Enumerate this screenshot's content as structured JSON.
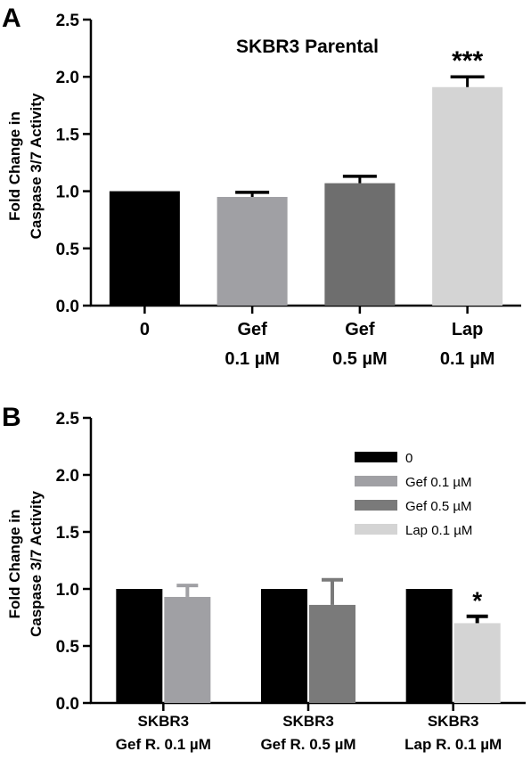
{
  "colors": {
    "zero": "#000000",
    "gef_01": "#a0a0a4",
    "gef_05": "#6e6e6e",
    "lap_01": "#d4d4d4",
    "axis": "#000000"
  },
  "chart_data": [
    {
      "panel_letter": "A",
      "type": "bar",
      "title": "SKBR3 Parental",
      "ylabel_lines": [
        "Fold Change in",
        "Caspase 3/7  Activity"
      ],
      "ylim": [
        0,
        2.5
      ],
      "yticks": [
        "0.0",
        "0.5",
        "1.0",
        "1.5",
        "2.0",
        "2.5"
      ],
      "categories": [
        [
          "0"
        ],
        [
          "Gef",
          "0.1 µM"
        ],
        [
          "Gef",
          "0.5 µM"
        ],
        [
          "Lap",
          "0.1 µM"
        ]
      ],
      "series": [
        {
          "values": [
            1.0,
            0.95,
            1.07,
            1.91
          ],
          "errors": [
            0.0,
            0.04,
            0.06,
            0.09
          ],
          "colors": [
            "#000000",
            "#a0a0a4",
            "#6e6e6e",
            "#d4d4d4"
          ]
        }
      ],
      "annotations": [
        {
          "category_index": 3,
          "text": "***"
        }
      ]
    },
    {
      "panel_letter": "B",
      "type": "bar",
      "title": "",
      "ylabel_lines": [
        "Fold Change in",
        "Caspase 3/7 Activity"
      ],
      "ylim": [
        0,
        2.5
      ],
      "yticks": [
        "0.0",
        "0.5",
        "1.0",
        "1.5",
        "2.0",
        "2.5"
      ],
      "categories": [
        [
          "SKBR3",
          "Gef R. 0.1 µM"
        ],
        [
          "SKBR3",
          "Gef R. 0.5 µM"
        ],
        [
          "SKBR3",
          "Lap R. 0.1 µM"
        ]
      ],
      "legend": {
        "position": "top-right",
        "entries": [
          {
            "label": "0",
            "color": "#000000"
          },
          {
            "label": "Gef 0.1 µM",
            "color": "#a0a0a4"
          },
          {
            "label": "Gef 0.5 µM",
            "color": "#7a7a7a"
          },
          {
            "label": "Lap 0.1 µM",
            "color": "#d4d4d4"
          }
        ]
      },
      "groups": [
        {
          "bars": [
            {
              "value": 1.0,
              "error": 0.0,
              "color": "#000000"
            },
            {
              "value": 0.93,
              "error": 0.1,
              "color": "#a0a0a4"
            }
          ]
        },
        {
          "bars": [
            {
              "value": 1.0,
              "error": 0.0,
              "color": "#000000"
            },
            {
              "value": 0.86,
              "error": 0.22,
              "color": "#7a7a7a"
            }
          ]
        },
        {
          "bars": [
            {
              "value": 1.0,
              "error": 0.0,
              "color": "#000000"
            },
            {
              "value": 0.7,
              "error": 0.06,
              "color": "#d4d4d4",
              "annotation": "*"
            }
          ]
        }
      ]
    }
  ]
}
